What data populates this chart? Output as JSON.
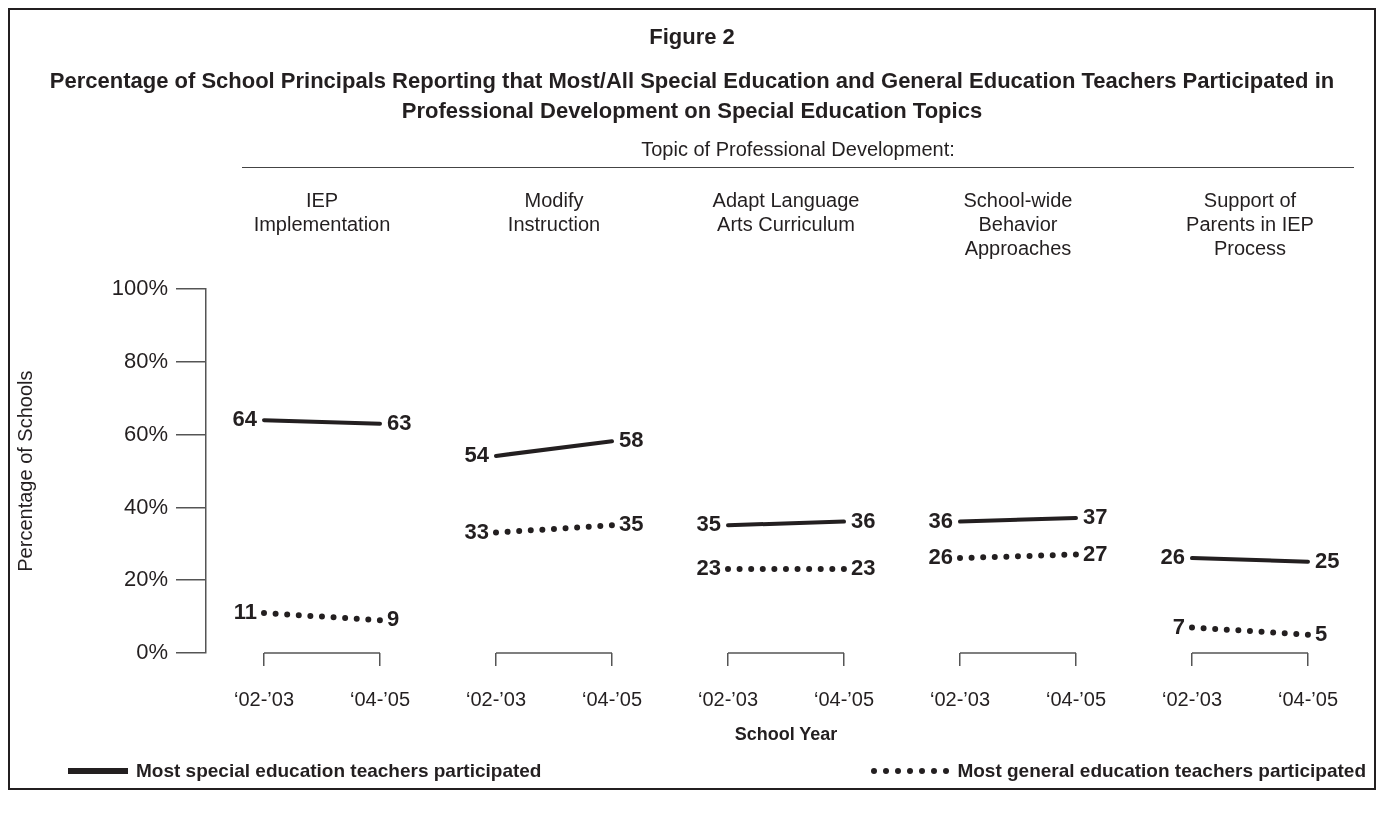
{
  "chart_data": [
    {
      "type": "line",
      "title": "IEP Implementation",
      "annotations": [
        "Figure 2",
        "Percentage of School Principals Reporting that Most/All Special Education and General Education Teachers Participated in Professional Development on Special Education Topics",
        "Topic of Professional Development:"
      ],
      "ylabel": "Percentage of Schools",
      "categories": [
        "‘02-’03",
        "‘04-’05"
      ],
      "ylim": [
        0,
        100
      ],
      "yticks": [
        {
          "value": 0,
          "label": "0%"
        },
        {
          "value": 20,
          "label": "20%"
        },
        {
          "value": 40,
          "label": "40%"
        },
        {
          "value": 60,
          "label": "60%"
        },
        {
          "value": 80,
          "label": "80%"
        },
        {
          "value": 100,
          "label": "100%"
        }
      ],
      "marker": "none",
      "data_labels": true,
      "legend": "bottom",
      "series": [
        {
          "name": "Most special education teachers participated",
          "color": "#231f20",
          "line_style": "solid",
          "values": [
            64,
            63
          ]
        },
        {
          "name": "Most general education teachers participated",
          "color": "#231f20",
          "line_style": "dotted",
          "values": [
            11,
            9
          ]
        }
      ]
    },
    {
      "type": "line",
      "title": "Modify Instruction",
      "categories": [
        "‘02-’03",
        "‘04-’05"
      ],
      "ylim": [
        0,
        100
      ],
      "tick_labels": "x",
      "marker": "none",
      "data_labels": true,
      "series": [
        {
          "color": "#231f20",
          "line_style": "solid",
          "values": [
            54,
            58
          ]
        },
        {
          "color": "#231f20",
          "line_style": "dotted",
          "values": [
            33,
            35
          ]
        }
      ]
    },
    {
      "type": "line",
      "title": "Adapt Language Arts Curriculum",
      "xlabel": "School Year",
      "categories": [
        "‘02-’03",
        "‘04-’05"
      ],
      "ylim": [
        0,
        100
      ],
      "tick_labels": "x",
      "marker": "none",
      "data_labels": true,
      "series": [
        {
          "color": "#231f20",
          "line_style": "solid",
          "values": [
            35,
            36
          ]
        },
        {
          "color": "#231f20",
          "line_style": "dotted",
          "values": [
            23,
            23
          ]
        }
      ]
    },
    {
      "type": "line",
      "title": "School-wide Behavior Approaches",
      "categories": [
        "‘02-’03",
        "‘04-’05"
      ],
      "ylim": [
        0,
        100
      ],
      "tick_labels": "x",
      "marker": "none",
      "data_labels": true,
      "series": [
        {
          "color": "#231f20",
          "line_style": "solid",
          "values": [
            36,
            37
          ]
        },
        {
          "color": "#231f20",
          "line_style": "dotted",
          "values": [
            26,
            27
          ]
        }
      ]
    },
    {
      "type": "line",
      "title": "Support of Parents in IEP Process",
      "categories": [
        "‘02-’03",
        "‘04-’05"
      ],
      "ylim": [
        0,
        100
      ],
      "tick_labels": "x",
      "marker": "none",
      "data_labels": true,
      "series": [
        {
          "color": "#231f20",
          "line_style": "solid",
          "values": [
            26,
            25
          ]
        },
        {
          "color": "#231f20",
          "line_style": "dotted",
          "values": [
            7,
            5
          ]
        }
      ]
    }
  ]
}
